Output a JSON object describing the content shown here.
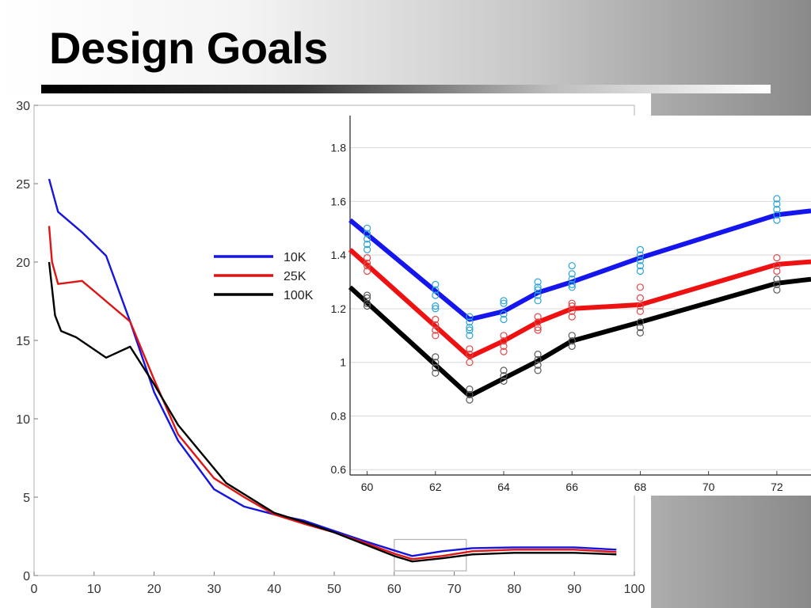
{
  "slide": {
    "title": "Design Goals"
  },
  "chart_data": [
    {
      "type": "line",
      "title": "",
      "xlabel": "",
      "ylabel": "",
      "xlim": [
        0,
        100
      ],
      "ylim": [
        0,
        30
      ],
      "xticks": [
        0,
        10,
        20,
        30,
        40,
        50,
        60,
        70,
        80,
        90,
        100
      ],
      "yticks": [
        0,
        5,
        10,
        15,
        20,
        25,
        30
      ],
      "grid": false,
      "legend": "center",
      "highlight_region": {
        "x": [
          60,
          72
        ],
        "y": [
          0.3,
          2.3
        ]
      },
      "series": [
        {
          "name": "10K",
          "color": "#1515dd",
          "x": [
            2.5,
            4,
            8,
            12,
            16,
            20,
            24,
            30,
            35,
            40,
            45,
            50,
            55,
            60,
            63,
            68,
            73,
            80,
            90,
            97
          ],
          "y": [
            25.3,
            23.2,
            21.9,
            20.4,
            16.2,
            11.7,
            8.6,
            5.5,
            4.4,
            3.9,
            3.5,
            2.85,
            2.2,
            1.6,
            1.25,
            1.55,
            1.75,
            1.8,
            1.8,
            1.65
          ]
        },
        {
          "name": "25K",
          "color": "#dd1515",
          "x": [
            2.5,
            3,
            4,
            8,
            16,
            20,
            24,
            30,
            35,
            40,
            45,
            50,
            55,
            60,
            63,
            68,
            73,
            80,
            90,
            97
          ],
          "y": [
            22.3,
            20.0,
            18.6,
            18.8,
            16.2,
            12.5,
            9.0,
            6.2,
            5.0,
            3.9,
            3.3,
            2.75,
            2.1,
            1.4,
            1.05,
            1.25,
            1.55,
            1.65,
            1.65,
            1.5
          ]
        },
        {
          "name": "100K",
          "color": "#000000",
          "x": [
            2.5,
            3.5,
            4.5,
            7,
            12,
            16,
            20,
            24,
            32,
            40,
            45,
            50,
            55,
            60,
            63,
            68,
            73,
            80,
            90,
            97
          ],
          "y": [
            20.0,
            16.6,
            15.6,
            15.2,
            13.9,
            14.6,
            12.2,
            9.6,
            5.9,
            4.0,
            3.4,
            2.75,
            2.0,
            1.25,
            0.9,
            1.1,
            1.35,
            1.45,
            1.45,
            1.35
          ]
        }
      ]
    },
    {
      "type": "line",
      "title": "",
      "xlabel": "",
      "ylabel": "",
      "xlim": [
        59.5,
        73
      ],
      "ylim": [
        0.58,
        1.92
      ],
      "xticks": [
        60,
        62,
        64,
        66,
        68,
        70,
        72
      ],
      "yticks": [
        0.6,
        0.8,
        1,
        1.2,
        1.4,
        1.6,
        1.8
      ],
      "grid": true,
      "series": [
        {
          "name": "10K",
          "color": "#1515ee",
          "point_color": "#2ba4d4",
          "x": [
            59.5,
            63,
            64,
            65,
            66,
            68,
            72,
            73
          ],
          "y": [
            1.53,
            1.16,
            1.19,
            1.26,
            1.3,
            1.39,
            1.55,
            1.565
          ],
          "points": [
            [
              60,
              1.5
            ],
            [
              60,
              1.48
            ],
            [
              60,
              1.46
            ],
            [
              60,
              1.44
            ],
            [
              60,
              1.42
            ],
            [
              62,
              1.29
            ],
            [
              62,
              1.27
            ],
            [
              62,
              1.25
            ],
            [
              62,
              1.21
            ],
            [
              62,
              1.2
            ],
            [
              63,
              1.17
            ],
            [
              63,
              1.15
            ],
            [
              63,
              1.13
            ],
            [
              63,
              1.12
            ],
            [
              63,
              1.1
            ],
            [
              64,
              1.23
            ],
            [
              64,
              1.22
            ],
            [
              64,
              1.18
            ],
            [
              64,
              1.16
            ],
            [
              65,
              1.3
            ],
            [
              65,
              1.28
            ],
            [
              65,
              1.27
            ],
            [
              65,
              1.25
            ],
            [
              65,
              1.23
            ],
            [
              66,
              1.36
            ],
            [
              66,
              1.33
            ],
            [
              66,
              1.31
            ],
            [
              66,
              1.29
            ],
            [
              66,
              1.28
            ],
            [
              68,
              1.42
            ],
            [
              68,
              1.4
            ],
            [
              68,
              1.38
            ],
            [
              68,
              1.36
            ],
            [
              68,
              1.34
            ],
            [
              72,
              1.61
            ],
            [
              72,
              1.59
            ],
            [
              72,
              1.57
            ],
            [
              72,
              1.55
            ],
            [
              72,
              1.53
            ]
          ]
        },
        {
          "name": "25K",
          "color": "#ee1111",
          "point_color": "#e04848",
          "x": [
            59.5,
            63,
            64,
            65,
            66,
            68,
            72,
            73
          ],
          "y": [
            1.42,
            1.02,
            1.08,
            1.15,
            1.2,
            1.215,
            1.365,
            1.375
          ],
          "points": [
            [
              60,
              1.39
            ],
            [
              60,
              1.37
            ],
            [
              60,
              1.36
            ],
            [
              60,
              1.34
            ],
            [
              62,
              1.16
            ],
            [
              62,
              1.14
            ],
            [
              62,
              1.12
            ],
            [
              62,
              1.1
            ],
            [
              63,
              1.05
            ],
            [
              63,
              1.03
            ],
            [
              63,
              1.0
            ],
            [
              64,
              1.1
            ],
            [
              64,
              1.08
            ],
            [
              64,
              1.06
            ],
            [
              64,
              1.04
            ],
            [
              65,
              1.17
            ],
            [
              65,
              1.15
            ],
            [
              65,
              1.13
            ],
            [
              65,
              1.12
            ],
            [
              66,
              1.22
            ],
            [
              66,
              1.21
            ],
            [
              66,
              1.19
            ],
            [
              66,
              1.17
            ],
            [
              68,
              1.28
            ],
            [
              68,
              1.24
            ],
            [
              68,
              1.21
            ],
            [
              68,
              1.19
            ],
            [
              72,
              1.39
            ],
            [
              72,
              1.36
            ],
            [
              72,
              1.34
            ]
          ]
        },
        {
          "name": "100K",
          "color": "#000000",
          "point_color": "#5a5a5a",
          "x": [
            59.5,
            63,
            64,
            65,
            66,
            68,
            72,
            73
          ],
          "y": [
            1.28,
            0.875,
            0.94,
            1.005,
            1.08,
            1.15,
            1.295,
            1.31
          ],
          "points": [
            [
              60,
              1.25
            ],
            [
              60,
              1.24
            ],
            [
              60,
              1.22
            ],
            [
              60,
              1.21
            ],
            [
              62,
              1.02
            ],
            [
              62,
              1.0
            ],
            [
              62,
              0.98
            ],
            [
              62,
              0.96
            ],
            [
              63,
              0.9
            ],
            [
              63,
              0.88
            ],
            [
              63,
              0.86
            ],
            [
              64,
              0.97
            ],
            [
              64,
              0.95
            ],
            [
              64,
              0.93
            ],
            [
              65,
              1.03
            ],
            [
              65,
              1.01
            ],
            [
              65,
              0.99
            ],
            [
              65,
              0.97
            ],
            [
              66,
              1.1
            ],
            [
              66,
              1.08
            ],
            [
              66,
              1.06
            ],
            [
              68,
              1.15
            ],
            [
              68,
              1.13
            ],
            [
              68,
              1.11
            ],
            [
              72,
              1.31
            ],
            [
              72,
              1.29
            ],
            [
              72,
              1.27
            ]
          ]
        }
      ]
    }
  ]
}
